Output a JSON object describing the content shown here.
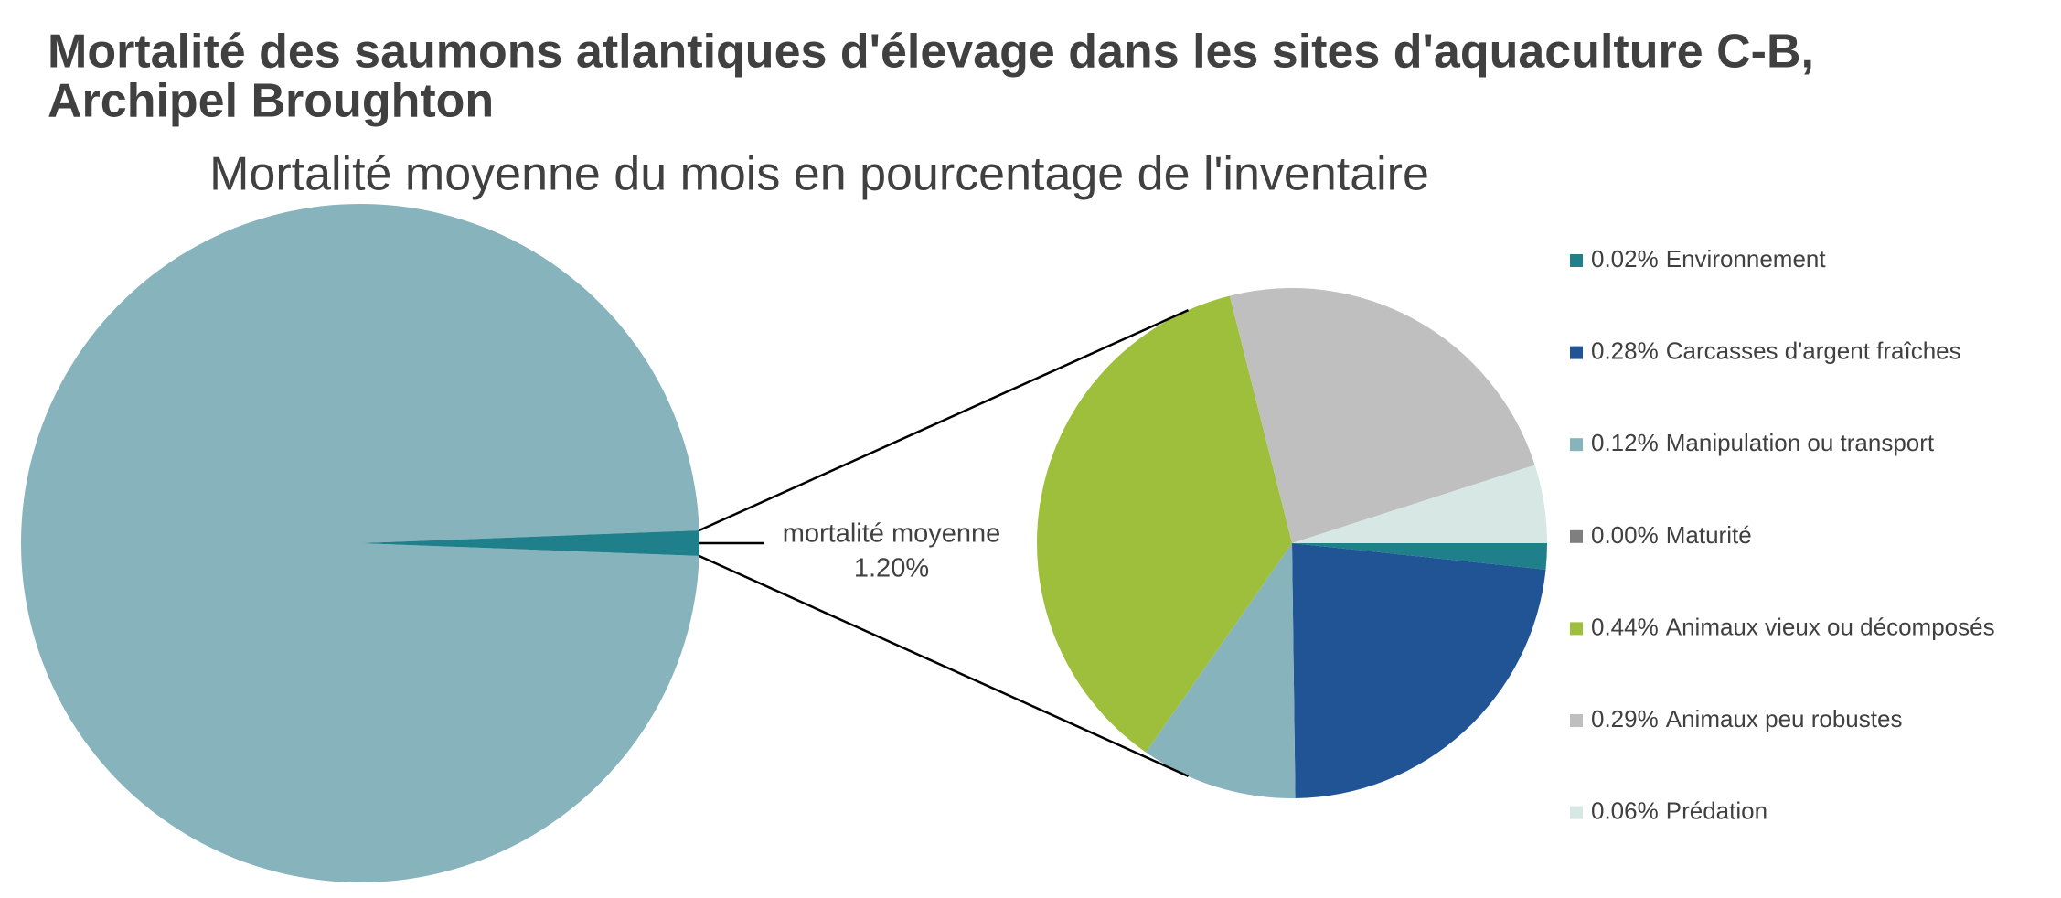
{
  "chart_data": {
    "type": "pie-of-pie",
    "title_lines": [
      "Mortalité des saumons atlantiques d'élevage dans les sites d'aquaculture C-B,",
      "Archipel Broughton"
    ],
    "subtitle": "Mortalité moyenne du mois en pourcentage de l'inventaire",
    "main": {
      "other_value": 98.8,
      "other_color": "#86b3bc",
      "label": "mortalité moyenne",
      "value": 1.2,
      "value_label": "1.20%",
      "color": "#1f7f8b"
    },
    "categories": [
      "Environnement",
      "Carcasses d'argent fraîches",
      "Manipulation ou transport",
      "Maturité",
      "Animaux vieux ou décomposés",
      "Animaux peu robustes",
      "Prédation"
    ],
    "values": [
      0.02,
      0.28,
      0.12,
      0.0,
      0.44,
      0.29,
      0.06
    ],
    "value_labels": [
      "0.02%",
      "0.28%",
      "0.12%",
      "0.00%",
      "0.44%",
      "0.29%",
      "0.06%"
    ],
    "colors": [
      "#1f7f8b",
      "#215495",
      "#86b3bc",
      "#7f7f7f",
      "#9dbf3c",
      "#bfbfbf",
      "#d6e7e4"
    ],
    "legend": "right"
  }
}
